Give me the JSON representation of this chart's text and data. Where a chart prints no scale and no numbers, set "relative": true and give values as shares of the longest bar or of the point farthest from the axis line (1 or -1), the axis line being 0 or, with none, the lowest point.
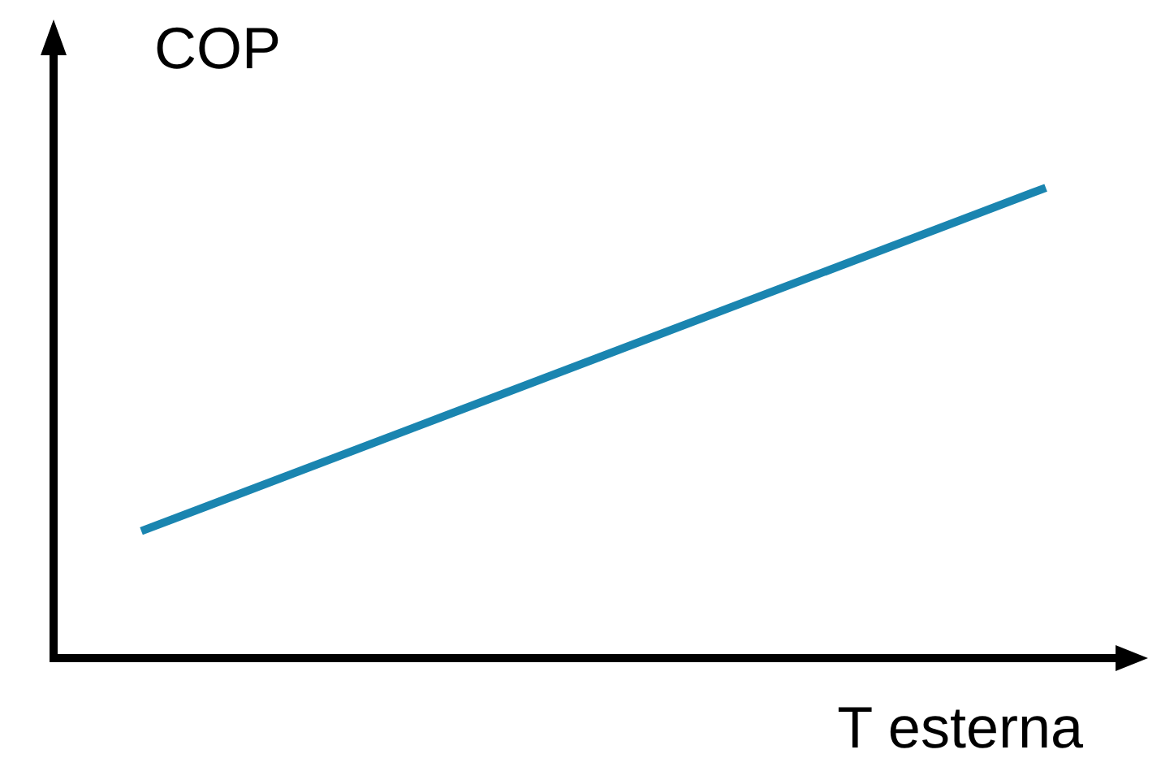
{
  "chart_data": {
    "type": "line",
    "xlabel": "T esterna",
    "ylabel": "COP",
    "categories": [
      null,
      null
    ],
    "relative": true,
    "series": [
      {
        "color": "#1a85b0",
        "values": [
          0.27,
          1
        ]
      }
    ],
    "legend": false,
    "marker": "none",
    "line_style": "solid"
  }
}
